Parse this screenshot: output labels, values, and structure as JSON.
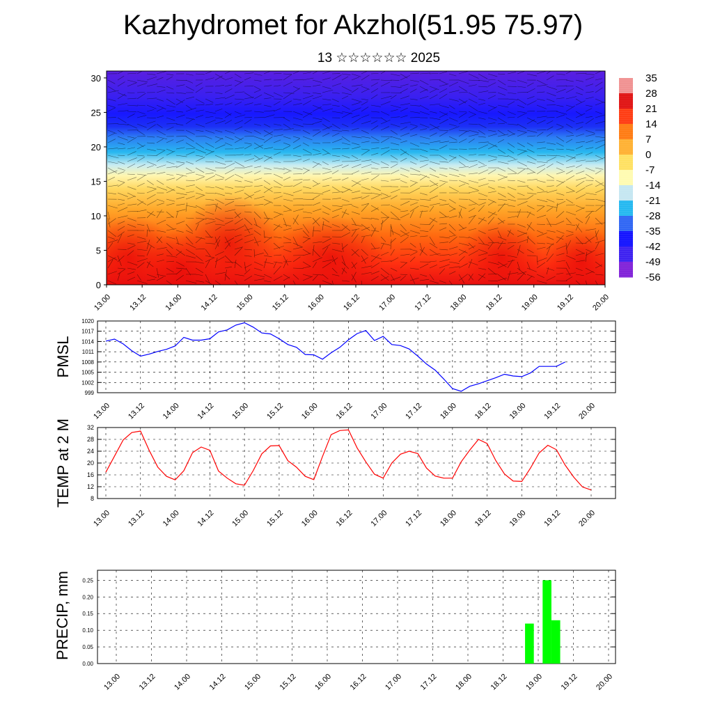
{
  "page": {
    "title": "Kazhydromet for Akzhol(51.95 75.97)",
    "subtitle": "13 ☆☆☆☆☆☆ 2025"
  },
  "colors": {
    "pmsl_line": "#0000ff",
    "temp_line": "#ff0000",
    "precip_bar": "#00ff00",
    "colorbar": [
      "#7f1fd8",
      "#3b1ef0",
      "#1010ff",
      "#2d64f4",
      "#22b8f0",
      "#c4e6f2",
      "#fffbb0",
      "#ffe060",
      "#ffb030",
      "#ff7a10",
      "#ff3a10",
      "#e01010",
      "#f09090"
    ]
  },
  "chart_data": [
    {
      "id": "cross_section",
      "type": "heatmap",
      "yticks": [
        "0",
        "5",
        "10",
        "15",
        "20",
        "25",
        "30"
      ],
      "ylim": [
        0,
        31
      ],
      "xticks": [
        "13.00",
        "13.12",
        "14.00",
        "14.12",
        "15.00",
        "15.12",
        "16.00",
        "16.12",
        "17.00",
        "17.12",
        "18.00",
        "18.12",
        "19.00",
        "19.12",
        "20.00"
      ],
      "colorbar_labels": [
        "35",
        "28",
        "21",
        "14",
        "7",
        "0",
        "-7",
        "-14",
        "-21",
        "-28",
        "-35",
        "-42",
        "-49",
        "-56"
      ]
    },
    {
      "id": "pmsl",
      "type": "line",
      "ylabel": "PMSL",
      "ylim": [
        999,
        1020
      ],
      "yticks": [
        "1020",
        "1017",
        "1014",
        "1011",
        "1008",
        "1005",
        "1002",
        "999"
      ],
      "xticks": [
        "13.00",
        "13.12",
        "14.00",
        "14.12",
        "15.00",
        "15.12",
        "16.00",
        "16.12",
        "17.00",
        "17.12",
        "18.00",
        "18.12",
        "19.00",
        "19.12",
        "20.00"
      ],
      "x": [
        0,
        1,
        2,
        3,
        4,
        5,
        6,
        7,
        8,
        9,
        10,
        11,
        12,
        13,
        14,
        15,
        16,
        17,
        18,
        19,
        20,
        21,
        22,
        23,
        24,
        25,
        26,
        27,
        28,
        29,
        30,
        31,
        32,
        33,
        34,
        35,
        36,
        37,
        38,
        39,
        40,
        41,
        42,
        43,
        44,
        45,
        46,
        47,
        48,
        49,
        50,
        51,
        52,
        53,
        54,
        55,
        56
      ],
      "values": [
        1014.1,
        1014.7,
        1013.3,
        1011.3,
        1009.7,
        1010.3,
        1011.1,
        1011.7,
        1012.7,
        1015.2,
        1014.4,
        1014.4,
        1014.8,
        1016.8,
        1017.4,
        1018.8,
        1019.5,
        1018.2,
        1016.5,
        1016.2,
        1014.8,
        1013.1,
        1012.3,
        1010.2,
        1010.1,
        1008.8,
        1010.7,
        1012.3,
        1014.5,
        1016.3,
        1017.2,
        1014.3,
        1015.5,
        1013.1,
        1012.8,
        1011.8,
        1009.7,
        1007.4,
        1005.6,
        1003.0,
        1000.2,
        999.4,
        1000.9,
        1001.6,
        1002.5,
        1003.4,
        1004.4,
        1003.9,
        1003.7,
        1004.8,
        1006.7,
        1006.7,
        1006.7,
        1008.0,
        null,
        null,
        null
      ]
    },
    {
      "id": "temp2m",
      "type": "line",
      "ylabel": "TEMP at 2 M",
      "ylim": [
        8,
        32
      ],
      "yticks": [
        "32",
        "28",
        "24",
        "20",
        "16",
        "12",
        "8"
      ],
      "xticks": [
        "13.00",
        "13.12",
        "14.00",
        "14.12",
        "15.00",
        "15.12",
        "16.00",
        "16.12",
        "17.00",
        "17.12",
        "18.00",
        "18.12",
        "19.00",
        "19.12",
        "20.00"
      ],
      "x": [
        0,
        1,
        2,
        3,
        4,
        5,
        6,
        7,
        8,
        9,
        10,
        11,
        12,
        13,
        14,
        15,
        16,
        17,
        18,
        19,
        20,
        21,
        22,
        23,
        24,
        25,
        26,
        27,
        28,
        29,
        30,
        31,
        32,
        33,
        34,
        35,
        36,
        37,
        38,
        39,
        40,
        41,
        42,
        43,
        44,
        45,
        46,
        47,
        48,
        49,
        50,
        51,
        52,
        53,
        54,
        55,
        56
      ],
      "values": [
        16.9,
        22.3,
        27.8,
        30.3,
        30.8,
        24.3,
        18.6,
        15.5,
        14.3,
        17.4,
        23.5,
        25.4,
        24.3,
        17.3,
        14.9,
        13.0,
        12.5,
        17.4,
        23.1,
        25.8,
        25.9,
        20.8,
        18.6,
        15.5,
        14.4,
        22.2,
        29.6,
        31.0,
        31.2,
        25.1,
        20.4,
        16.2,
        14.9,
        20.0,
        23.0,
        24.0,
        23.2,
        18.3,
        15.6,
        14.9,
        14.9,
        20.4,
        24.4,
        28.0,
        26.6,
        20.8,
        16.3,
        13.9,
        13.8,
        18.3,
        23.4,
        26.0,
        24.5,
        19.3,
        15.2,
        11.9,
        10.9
      ]
    },
    {
      "id": "precip",
      "type": "bar",
      "ylabel": "PRECIP, mm",
      "ylim": [
        0,
        0.28
      ],
      "yticks": [
        "0.25",
        "0.20",
        "0.15",
        "0.10",
        "0.05",
        "0.00"
      ],
      "xticks": [
        "13.00",
        "13.12",
        "14.00",
        "14.12",
        "15.00",
        "15.12",
        "16.00",
        "16.12",
        "17.00",
        "17.12",
        "18.00",
        "18.12",
        "19.00",
        "19.12",
        "20.00"
      ],
      "bars": [
        {
          "x": 47,
          "value": 0.12
        },
        {
          "x": 49,
          "value": 0.25
        },
        {
          "x": 50,
          "value": 0.13
        }
      ]
    }
  ]
}
